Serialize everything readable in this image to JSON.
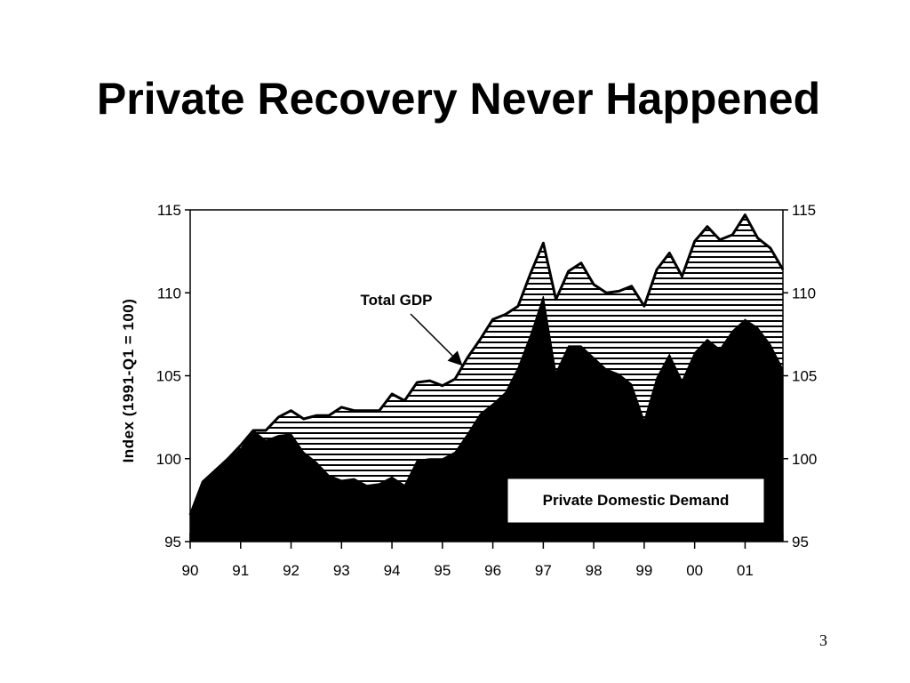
{
  "slide": {
    "title": "Private Recovery Never Happened",
    "page_number": "3"
  },
  "colors": {
    "background": "#ffffff",
    "gdp_hatch": "#000000",
    "private_demand_fill": "#000000"
  },
  "chart_data": {
    "type": "area",
    "title": "",
    "xlabel": "",
    "ylabel": "Index (1991-Q1 = 100)",
    "ylim": [
      95,
      115
    ],
    "yticks": [
      95,
      100,
      105,
      110,
      115
    ],
    "ytick_labels": [
      "95",
      "100",
      "105",
      "110",
      "115"
    ],
    "y_axis_sides": [
      "left",
      "right"
    ],
    "xlim": [
      1990.0,
      2001.75
    ],
    "x_ticks": [
      1990,
      1991,
      1992,
      1993,
      1994,
      1995,
      1996,
      1997,
      1998,
      1999,
      2000,
      2001
    ],
    "x_tick_labels": [
      "90",
      "91",
      "92",
      "93",
      "94",
      "95",
      "96",
      "97",
      "98",
      "99",
      "00",
      "01"
    ],
    "x_minor_step": 0.25,
    "grid": false,
    "annotations": [
      {
        "text": "Total GDP",
        "points_to": [
          1995.4,
          105.6
        ]
      },
      {
        "text": "Private Domestic Demand",
        "boxed": true
      }
    ],
    "series": [
      {
        "label": "Total GDP",
        "fill": "horizontal-hatch",
        "points": [
          [
            1990.0,
            96.6
          ],
          [
            1990.25,
            98.6
          ],
          [
            1990.5,
            99.3
          ],
          [
            1990.75,
            100.0
          ],
          [
            1991.0,
            100.8
          ],
          [
            1991.25,
            101.7
          ],
          [
            1991.5,
            101.7
          ],
          [
            1991.75,
            102.5
          ],
          [
            1992.0,
            102.9
          ],
          [
            1992.25,
            102.4
          ],
          [
            1992.5,
            102.6
          ],
          [
            1992.75,
            102.6
          ],
          [
            1993.0,
            103.1
          ],
          [
            1993.25,
            102.9
          ],
          [
            1993.5,
            102.9
          ],
          [
            1993.75,
            102.9
          ],
          [
            1994.0,
            103.9
          ],
          [
            1994.25,
            103.5
          ],
          [
            1994.5,
            104.6
          ],
          [
            1994.75,
            104.7
          ],
          [
            1995.0,
            104.4
          ],
          [
            1995.25,
            104.8
          ],
          [
            1995.5,
            106.1
          ],
          [
            1995.75,
            107.2
          ],
          [
            1996.0,
            108.4
          ],
          [
            1996.25,
            108.7
          ],
          [
            1996.5,
            109.2
          ],
          [
            1996.75,
            111.2
          ],
          [
            1997.0,
            113.0
          ],
          [
            1997.25,
            109.6
          ],
          [
            1997.5,
            111.3
          ],
          [
            1997.75,
            111.8
          ],
          [
            1998.0,
            110.5
          ],
          [
            1998.25,
            110.0
          ],
          [
            1998.5,
            110.1
          ],
          [
            1998.75,
            110.4
          ],
          [
            1999.0,
            109.2
          ],
          [
            1999.25,
            111.4
          ],
          [
            1999.5,
            112.4
          ],
          [
            1999.75,
            111.0
          ],
          [
            2000.0,
            113.1
          ],
          [
            2000.25,
            114.0
          ],
          [
            2000.5,
            113.2
          ],
          [
            2000.75,
            113.5
          ],
          [
            2001.0,
            114.7
          ],
          [
            2001.25,
            113.3
          ],
          [
            2001.5,
            112.7
          ],
          [
            2001.75,
            111.4
          ]
        ]
      },
      {
        "label": "Private Domestic Demand",
        "fill": "solid",
        "points": [
          [
            1990.0,
            96.6
          ],
          [
            1990.25,
            98.6
          ],
          [
            1990.5,
            99.3
          ],
          [
            1990.75,
            100.0
          ],
          [
            1991.0,
            100.6
          ],
          [
            1991.25,
            101.7
          ],
          [
            1991.5,
            101.1
          ],
          [
            1991.75,
            101.4
          ],
          [
            1992.0,
            101.5
          ],
          [
            1992.25,
            100.4
          ],
          [
            1992.5,
            99.8
          ],
          [
            1992.75,
            99.0
          ],
          [
            1993.0,
            98.7
          ],
          [
            1993.25,
            98.8
          ],
          [
            1993.5,
            98.4
          ],
          [
            1993.75,
            98.5
          ],
          [
            1994.0,
            98.9
          ],
          [
            1994.25,
            98.4
          ],
          [
            1994.5,
            99.9
          ],
          [
            1994.75,
            100.0
          ],
          [
            1995.0,
            100.0
          ],
          [
            1995.25,
            100.4
          ],
          [
            1995.5,
            101.5
          ],
          [
            1995.75,
            102.7
          ],
          [
            1996.0,
            103.3
          ],
          [
            1996.25,
            104.0
          ],
          [
            1996.5,
            105.5
          ],
          [
            1996.75,
            107.5
          ],
          [
            1997.0,
            109.8
          ],
          [
            1997.25,
            105.2
          ],
          [
            1997.5,
            106.8
          ],
          [
            1997.75,
            106.8
          ],
          [
            1998.0,
            106.1
          ],
          [
            1998.25,
            105.4
          ],
          [
            1998.5,
            105.1
          ],
          [
            1998.75,
            104.5
          ],
          [
            1999.0,
            102.3
          ],
          [
            1999.25,
            104.9
          ],
          [
            1999.5,
            106.3
          ],
          [
            1999.75,
            104.7
          ],
          [
            2000.0,
            106.4
          ],
          [
            2000.25,
            107.2
          ],
          [
            2000.5,
            106.6
          ],
          [
            2000.75,
            107.7
          ],
          [
            2001.0,
            108.4
          ],
          [
            2001.25,
            107.9
          ],
          [
            2001.5,
            106.9
          ],
          [
            2001.75,
            105.4
          ]
        ]
      }
    ]
  }
}
